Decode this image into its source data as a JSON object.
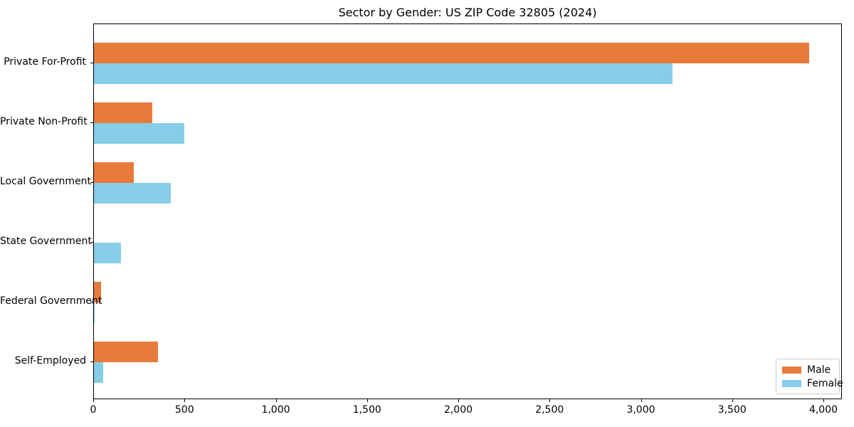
{
  "chart_data": {
    "type": "bar",
    "orientation": "horizontal",
    "title": "Sector by Gender: US ZIP Code 32805 (2024)",
    "categories": [
      "Private For-Profit",
      "Private Non-Profit",
      "Local Government",
      "State Government",
      "Federal Government",
      "Self-Employed"
    ],
    "series": [
      {
        "name": "Male",
        "color": "#e87b3c",
        "values": [
          3920,
          320,
          220,
          0,
          40,
          350
        ]
      },
      {
        "name": "Female",
        "color": "#87cde8",
        "values": [
          3170,
          495,
          420,
          150,
          4,
          50
        ]
      }
    ],
    "xlabel": "",
    "ylabel": "",
    "xlim": [
      0,
      4000
    ],
    "xticks": [
      0,
      500,
      1000,
      1500,
      2000,
      2500,
      3000,
      3500,
      4000
    ],
    "xtick_labels": [
      "0",
      "500",
      "1,000",
      "1,500",
      "2,000",
      "2,500",
      "3,000",
      "3,500",
      "4,000"
    ],
    "grid": false,
    "legend": {
      "position": "lower right",
      "entries": [
        "Male",
        "Female"
      ]
    },
    "colors": {
      "male": "#e87b3c",
      "female": "#87cde8",
      "axis": "#000000",
      "background": "#ffffff",
      "legend_border": "#cccccc"
    }
  }
}
